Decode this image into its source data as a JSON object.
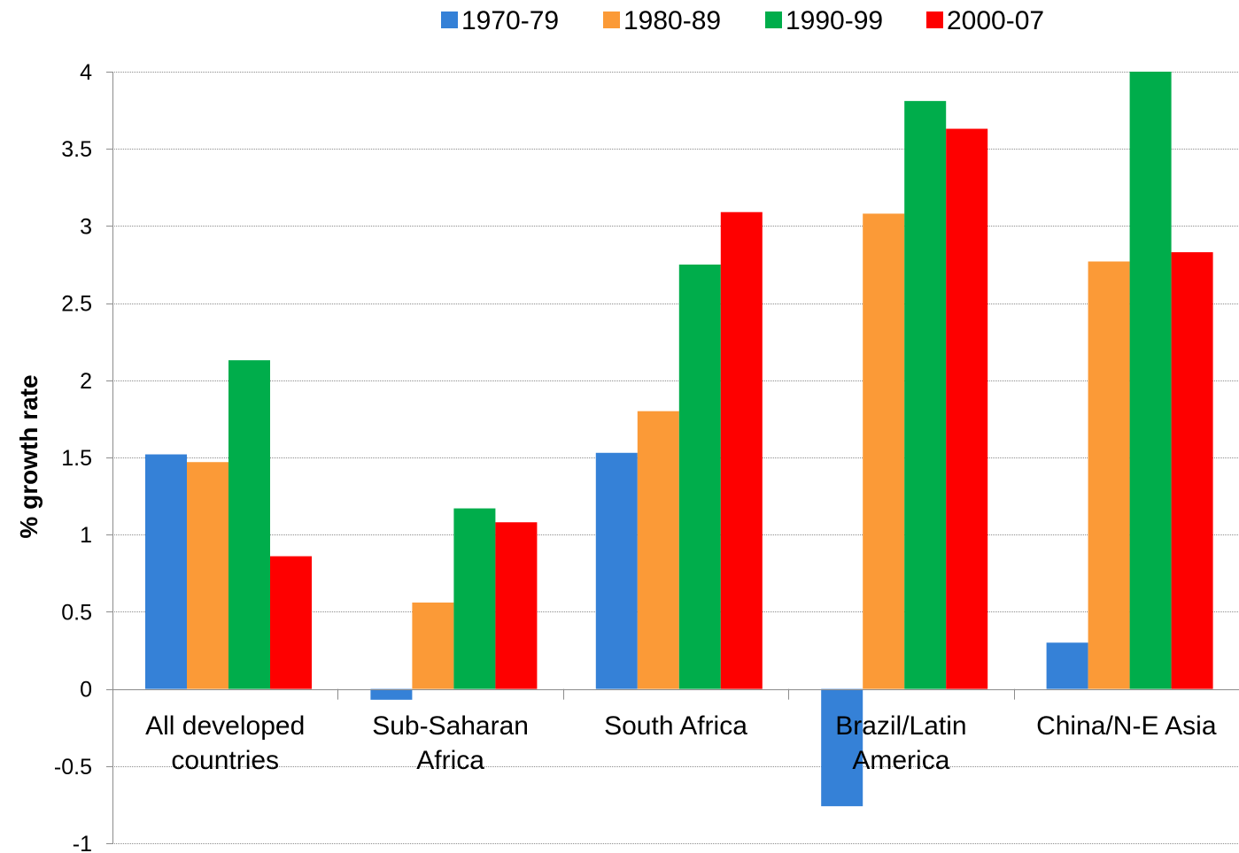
{
  "chart_data": {
    "type": "bar",
    "title": "",
    "xlabel": "",
    "ylabel": "% growth rate",
    "ylim": [
      -1,
      4
    ],
    "yticks": [
      "4",
      "3.5",
      "3",
      "2.5",
      "2",
      "1.5",
      "1",
      "0.5",
      "0",
      "-0.5",
      "-1"
    ],
    "ytick_values": [
      4,
      3.5,
      3,
      2.5,
      2,
      1.5,
      1,
      0.5,
      0,
      -0.5,
      -1
    ],
    "grid": true,
    "legend_position": "top",
    "categories": [
      [
        "All developed",
        "countries"
      ],
      [
        "Sub-Saharan",
        "Africa"
      ],
      [
        "South Africa"
      ],
      [
        "Brazil/Latin",
        "America"
      ],
      [
        "China/N-E Asia"
      ]
    ],
    "series": [
      {
        "name": "1970-79",
        "color": "#3581d7",
        "values": [
          1.52,
          -0.07,
          1.53,
          -0.76,
          0.3
        ]
      },
      {
        "name": "1980-89",
        "color": "#fb9a37",
        "values": [
          1.47,
          0.56,
          1.8,
          3.08,
          2.77
        ]
      },
      {
        "name": "1990-99",
        "color": "#00ad4b",
        "values": [
          2.13,
          1.17,
          2.75,
          3.81,
          4.0
        ]
      },
      {
        "name": "2000-07",
        "color": "#fe0000",
        "values": [
          0.86,
          1.08,
          3.09,
          3.63,
          2.83
        ]
      }
    ]
  }
}
